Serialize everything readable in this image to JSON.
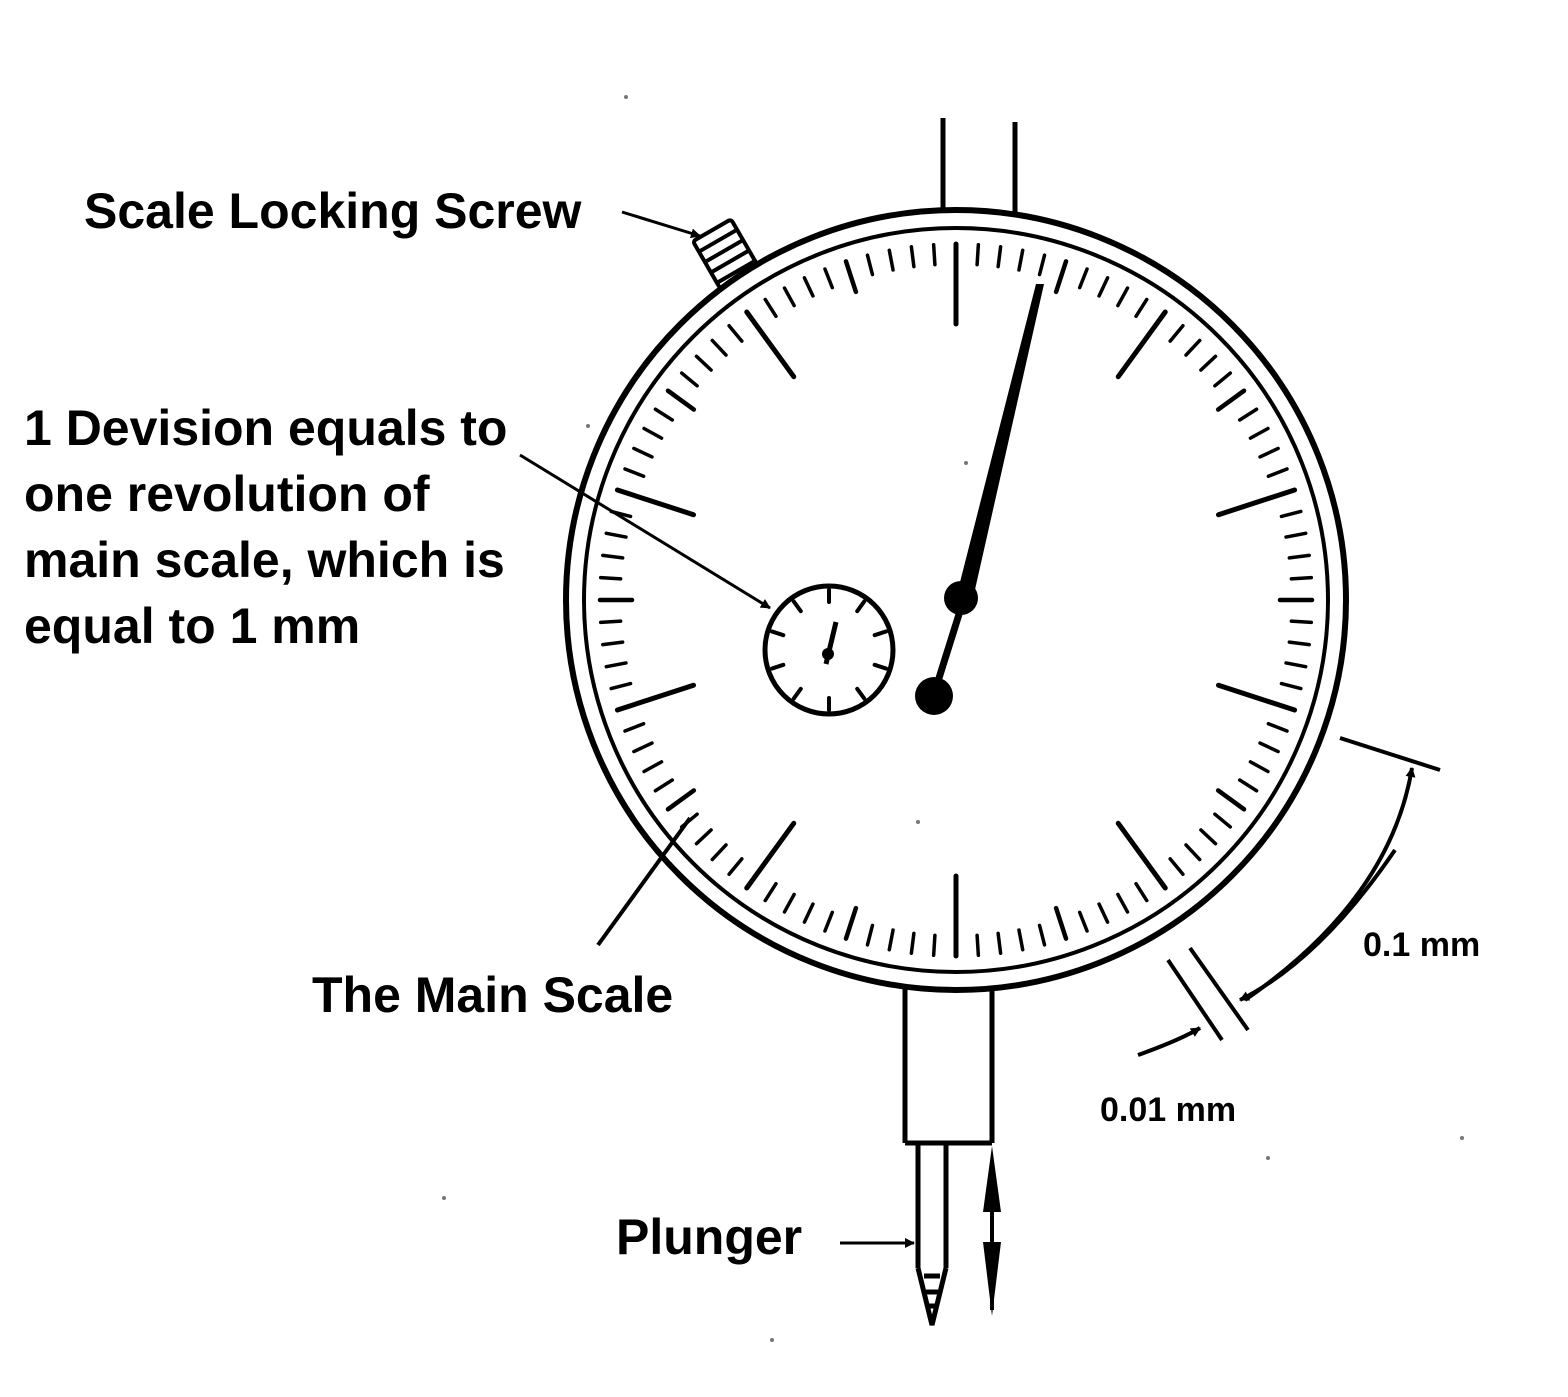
{
  "labels": {
    "scale_locking_screw": "Scale Locking Screw",
    "division_note": [
      "1 Devision equals to",
      "one revolution of",
      "main scale, which is",
      "equal to 1 mm"
    ],
    "main_scale": "The Main Scale",
    "plunger": "Plunger",
    "tenth_mm": "0.1 mm",
    "hundredth_mm": "0.01 mm"
  },
  "dial": {
    "main_scale_divisions": 100,
    "revolution_counter_divisions": 10
  },
  "colors": {
    "ink": "#000000",
    "background": "#ffffff"
  }
}
